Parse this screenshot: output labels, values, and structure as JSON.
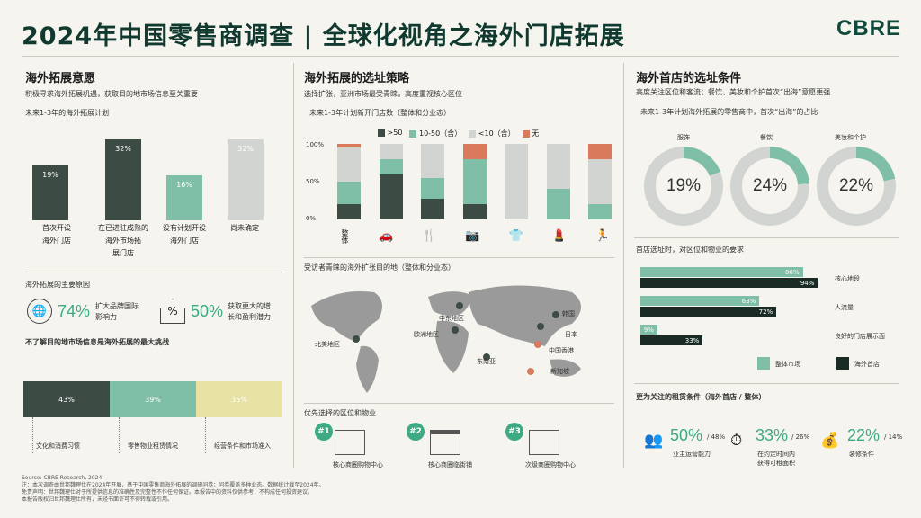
{
  "header": {
    "title": "2024年中国零售商调查 | 全球化视角之海外门店拓展",
    "logo": "CBRE"
  },
  "left": {
    "h_intent": "海外拓展意愿",
    "sub_intent": "积极寻求海外拓展机遇，获取目的地市场信息至关重要",
    "plan_title": "未来1-3年的海外拓展计划",
    "bars": [
      {
        "value": "19%",
        "label1": "首次开设",
        "label2": "海外门店",
        "pct": 19
      },
      {
        "value": "32%",
        "label1": "在已进驻成熟的",
        "label2": "海外市场拓",
        "label3": "展门店",
        "pct": 32
      },
      {
        "value": "16%",
        "label1": "没有计划开设",
        "label2": "海外门店",
        "pct": 16
      },
      {
        "value": "32%",
        "label1": "尚未确定",
        "label2": "",
        "pct": 32
      }
    ],
    "h_reasons": "海外拓展的主要原因",
    "reason1_pct": "74%",
    "reason1_text1": "扩大品牌国际",
    "reason1_text2": "影响力",
    "reason2_pct": "50%",
    "reason2_text1": "获取更大的增",
    "reason2_text2": "长和盈利潜力",
    "h_challenge": "不了解目的地市场信息是海外拓展的最大挑战",
    "challenges": [
      {
        "value": "43%",
        "label": "文化和消费习惯",
        "pct": 43
      },
      {
        "value": "39%",
        "label": "零售物业租赁情况",
        "pct": 39
      },
      {
        "value": "35%",
        "label": "经营条件和市场准入",
        "pct": 35
      }
    ]
  },
  "mid": {
    "h_strategy": "海外拓展的选址策略",
    "sub_strategy": "选择扩张，亚洲市场最受青睐，高度重视核心区位",
    "store_title": "未来1-3年计划新开门店数（整体和分业态）",
    "legend": [
      ">50",
      "10-50（含）",
      "<10（含）",
      "无"
    ],
    "yticks": [
      "100%",
      "50%",
      "0%"
    ],
    "sectors": [
      "整体",
      "汽车",
      "餐饮",
      "摄影",
      "服装",
      "美妆",
      "运动"
    ],
    "stacks": [
      {
        "d": 20,
        "t": 30,
        "g": 45,
        "r": 5
      },
      {
        "d": 60,
        "t": 20,
        "g": 20,
        "r": 0
      },
      {
        "d": 27,
        "t": 28,
        "g": 45,
        "r": 0
      },
      {
        "d": 20,
        "t": 60,
        "g": 0,
        "r": 20
      },
      {
        "d": 0,
        "t": 0,
        "g": 100,
        "r": 0
      },
      {
        "d": 0,
        "t": 40,
        "g": 60,
        "r": 0
      },
      {
        "d": 0,
        "t": 20,
        "g": 60,
        "r": 20
      }
    ],
    "h_map": "受访者青睐的海外扩张目的地（整体和分业态）",
    "map_labels": [
      "欧洲地区",
      "中东地区",
      "东南亚",
      "北美地区",
      "日本",
      "韩国",
      "新加坡",
      "中国香港"
    ],
    "h_location": "优先选择的区位和物业",
    "loc": [
      {
        "n": "#1",
        "label": "核心商圈购物中心"
      },
      {
        "n": "#2",
        "label": "核心商圈临街铺"
      },
      {
        "n": "#3",
        "label": "次级商圈购物中心"
      }
    ]
  },
  "right": {
    "h_first": "海外首店的选址条件",
    "sub_first": "高度关注区位和客流；餐饮、美妆和个护首次“出海”意愿更强",
    "first_title": "未来1-3年计划海外拓展的零售商中，首次“出海”的占比",
    "donuts": [
      {
        "label": "服饰",
        "value": "19%",
        "pct": 19
      },
      {
        "label": "餐饮",
        "value": "24%",
        "pct": 24
      },
      {
        "label": "美妆和个护",
        "value": "22%",
        "pct": 22
      }
    ],
    "h_req": "首店选址时，对区位和物业的要求",
    "hbars": [
      {
        "label": "核心地段",
        "overall": "86%",
        "first": "94%",
        "o": 86,
        "f": 94
      },
      {
        "label": "人流量",
        "overall": "63%",
        "first": "72%",
        "o": 63,
        "f": 72
      },
      {
        "label": "良好的门店展示面",
        "overall": "9%",
        "first": "33%",
        "o": 9,
        "f": 33
      }
    ],
    "legend_overall": "整体市场",
    "legend_first": "海外首店",
    "h_lease": "更为关注的租赁条件（海外首店 / 整体）",
    "lease": [
      {
        "pct": "50%",
        "alt": "/ 48%",
        "l1": "业主运营能力",
        "l2": ""
      },
      {
        "pct": "33%",
        "alt": "/ 26%",
        "l1": "在约定时间内",
        "l2": "获得可租面积"
      },
      {
        "pct": "22%",
        "alt": "/ 14%",
        "l1": "装修条件",
        "l2": ""
      }
    ]
  },
  "footer": {
    "line1": "Source: CBRE Research, 2024.",
    "line2": "注：本次调查由世邦魏理仕在2024年开展，基于中国零售商海外拓展的调研问卷；问卷覆盖多种业态。数据统计截至2024年。",
    "line3": "免责声明：世邦魏理仕对于所提供信息的准确性及完整性不作任何保证。本报告中的资料仅供参考，不构成任何投资建议。",
    "line4": "本报告版权归世邦魏理仕所有，未经书面许可不得转载或引用。"
  },
  "colors": {
    "dark": "#3d4b45",
    "teal": "#7fbfa7",
    "grey": "#d1d4d0",
    "red": "#d97a5c",
    "green": "#3daa83"
  }
}
